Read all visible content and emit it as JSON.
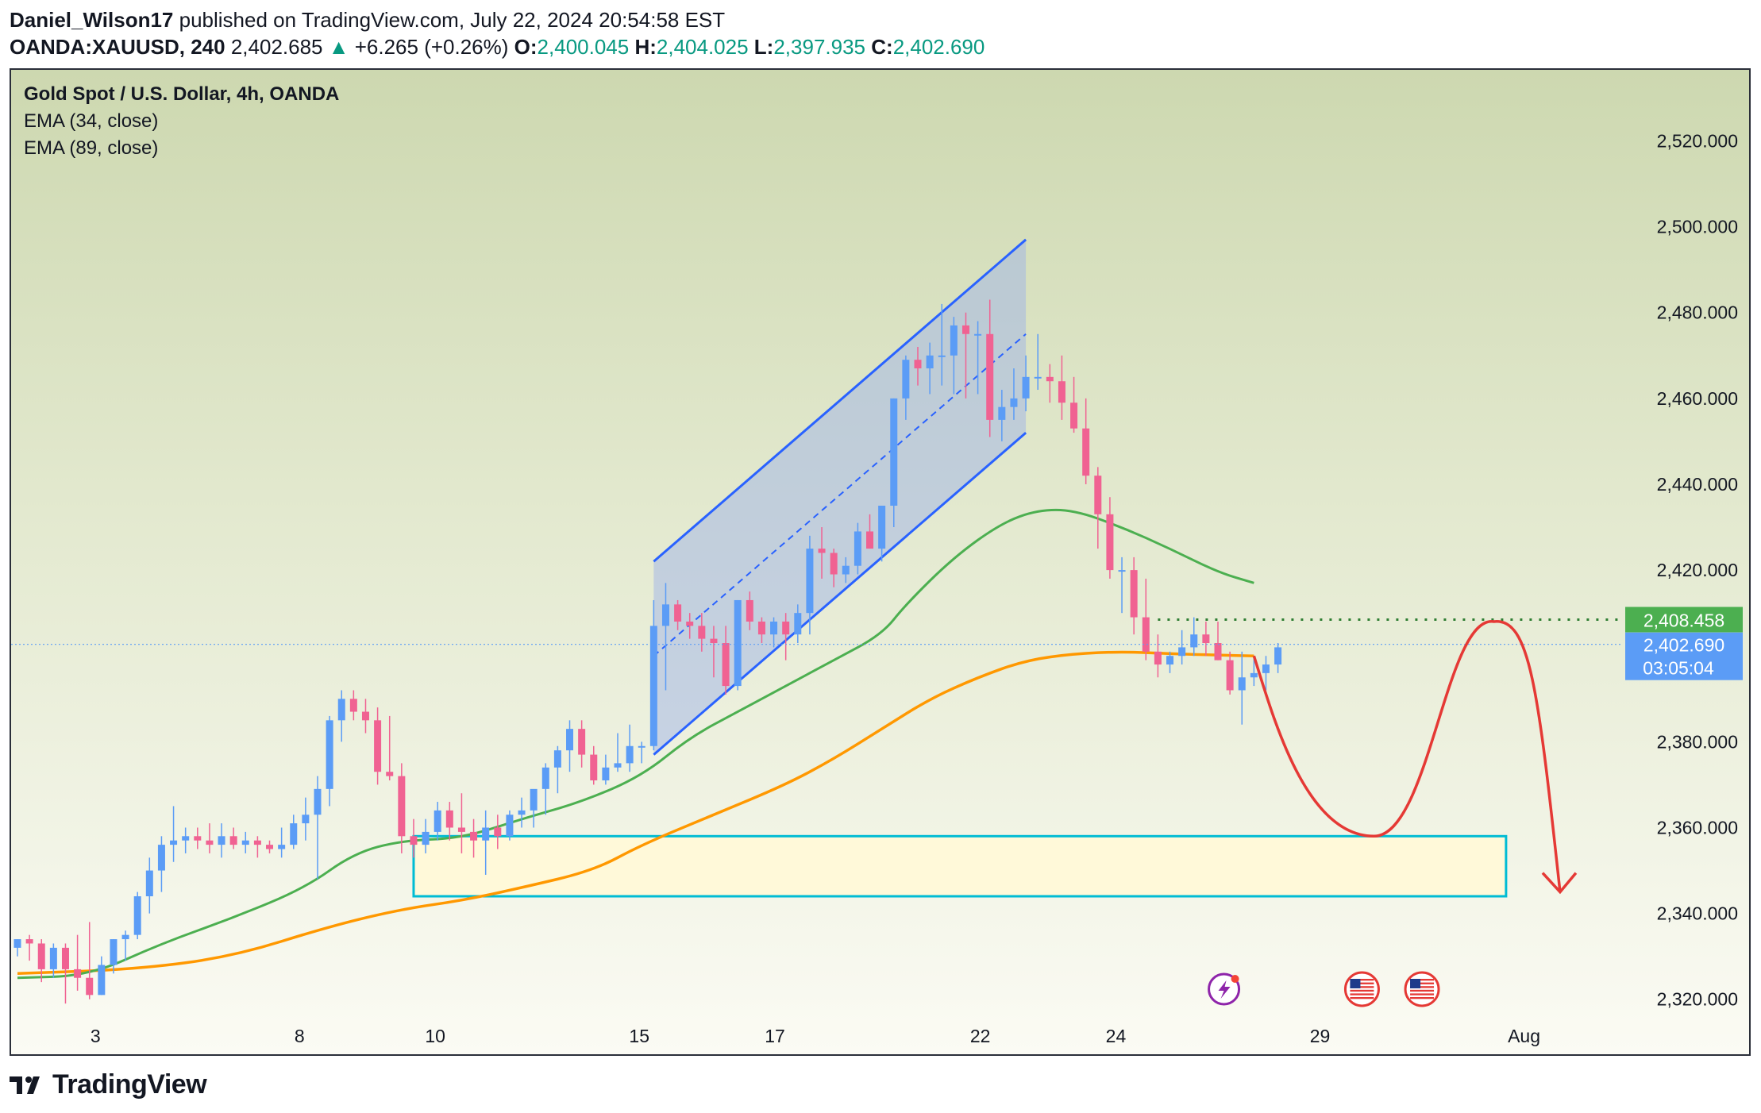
{
  "header": {
    "author": "Daniel_Wilson17",
    "published": "published on TradingView.com, July 22, 2024 20:54:58 EST",
    "symbol": "OANDA:XAUUSD, 240",
    "price": "2,402.685",
    "change": "+6.265 (+0.26%)",
    "open_label": "O:",
    "open": "2,400.045",
    "high_label": "H:",
    "high": "2,404.025",
    "low_label": "L:",
    "low": "2,397.935",
    "close_label": "C:",
    "close": "2,402.690"
  },
  "legend": {
    "title": "Gold Spot / U.S. Dollar, 4h, OANDA",
    "ema1": "EMA (34, close)",
    "ema2": "EMA (89, close)"
  },
  "footer": {
    "brand": "TradingView",
    "logo_icon": "tradingview-logo-icon"
  },
  "colors": {
    "up": "#5b9cf6",
    "down": "#f06292",
    "ema34": "#4caf50",
    "ema89": "#ff9800",
    "channel": "#2962ff",
    "zone_border": "#00bcd4",
    "zone_fill": "#fff9d9",
    "arrow": "#e53935",
    "level": "#2e7d32",
    "price_tag": "#5b9cf6",
    "level_tag": "#4caf50"
  },
  "chart_data": {
    "type": "candlestick",
    "title": "Gold Spot / U.S. Dollar, 4h, OANDA",
    "ylim": [
      2312,
      2531
    ],
    "y_ticks": [
      2520,
      2500,
      2480,
      2460,
      2440,
      2420,
      2380,
      2360,
      2340,
      2320
    ],
    "y_tick_labels": [
      "2,520.000",
      "2,500.000",
      "2,480.000",
      "2,460.000",
      "2,440.000",
      "2,420.000",
      "2,380.000",
      "2,360.000",
      "2,340.000",
      "2,320.000"
    ],
    "x_ticks": [
      {
        "label": "3",
        "bar": 6.5
      },
      {
        "label": "8",
        "bar": 23.5
      },
      {
        "label": "10",
        "bar": 34.8
      },
      {
        "label": "15",
        "bar": 51.8
      },
      {
        "label": "17",
        "bar": 63.1
      },
      {
        "label": "22",
        "bar": 80.2
      },
      {
        "label": "24",
        "bar": 91.5
      },
      {
        "label": "29",
        "bar": 108.5
      },
      {
        "label": "Aug",
        "bar": 125.5
      }
    ],
    "candles": [
      [
        2332,
        2334,
        2330,
        2334
      ],
      [
        2334,
        2335,
        2329,
        2333
      ],
      [
        2333,
        2334,
        2324,
        2327
      ],
      [
        2327,
        2333,
        2325,
        2332
      ],
      [
        2332,
        2333,
        2319,
        2327
      ],
      [
        2327,
        2335,
        2322,
        2325
      ],
      [
        2325,
        2338,
        2320,
        2321
      ],
      [
        2321,
        2330,
        2321,
        2328
      ],
      [
        2328,
        2334,
        2326,
        2334
      ],
      [
        2334,
        2336,
        2329,
        2335
      ],
      [
        2335,
        2345,
        2334,
        2344
      ],
      [
        2344,
        2353,
        2340,
        2350
      ],
      [
        2350,
        2358,
        2345,
        2356
      ],
      [
        2356,
        2365,
        2352,
        2357
      ],
      [
        2357,
        2360,
        2354,
        2358
      ],
      [
        2358,
        2360,
        2355,
        2357
      ],
      [
        2357,
        2361,
        2354,
        2356
      ],
      [
        2356,
        2361,
        2353,
        2358
      ],
      [
        2358,
        2360,
        2355,
        2356
      ],
      [
        2356,
        2359,
        2354,
        2357
      ],
      [
        2357,
        2358,
        2353,
        2356
      ],
      [
        2356,
        2357,
        2354,
        2355
      ],
      [
        2355,
        2360,
        2353,
        2356
      ],
      [
        2356,
        2363,
        2355,
        2361
      ],
      [
        2361,
        2367,
        2357,
        2363
      ],
      [
        2363,
        2372,
        2348,
        2369
      ],
      [
        2369,
        2386,
        2365,
        2385
      ],
      [
        2385,
        2392,
        2380,
        2390
      ],
      [
        2390,
        2392,
        2385,
        2387
      ],
      [
        2387,
        2390,
        2382,
        2385
      ],
      [
        2385,
        2388,
        2370,
        2373
      ],
      [
        2373,
        2386,
        2371,
        2372
      ],
      [
        2372,
        2375,
        2354,
        2358
      ],
      [
        2358,
        2362,
        2353,
        2356
      ],
      [
        2356,
        2362,
        2354,
        2359
      ],
      [
        2359,
        2366,
        2357,
        2364
      ],
      [
        2364,
        2366,
        2357,
        2360
      ],
      [
        2360,
        2368,
        2354,
        2359
      ],
      [
        2359,
        2362,
        2353,
        2357
      ],
      [
        2357,
        2364,
        2349,
        2360
      ],
      [
        2360,
        2363,
        2355,
        2358
      ],
      [
        2358,
        2364,
        2357,
        2363
      ],
      [
        2363,
        2367,
        2360,
        2364
      ],
      [
        2364,
        2368,
        2360,
        2369
      ],
      [
        2369,
        2375,
        2363,
        2374
      ],
      [
        2374,
        2379,
        2368,
        2378
      ],
      [
        2378,
        2385,
        2373,
        2383
      ],
      [
        2383,
        2385,
        2374,
        2377
      ],
      [
        2377,
        2379,
        2370,
        2371
      ],
      [
        2371,
        2377,
        2370,
        2374
      ],
      [
        2374,
        2382,
        2373,
        2375
      ],
      [
        2375,
        2384,
        2373,
        2379
      ],
      [
        2379,
        2380,
        2375,
        2379
      ],
      [
        2379,
        2413,
        2378,
        2407
      ],
      [
        2407,
        2417,
        2392,
        2412
      ],
      [
        2412,
        2413,
        2406,
        2408
      ],
      [
        2408,
        2410,
        2404,
        2407
      ],
      [
        2407,
        2410,
        2401,
        2404
      ],
      [
        2404,
        2407,
        2395,
        2403
      ],
      [
        2403,
        2407,
        2391,
        2393
      ],
      [
        2393,
        2413,
        2392,
        2413
      ],
      [
        2413,
        2415,
        2406,
        2408
      ],
      [
        2408,
        2409,
        2403,
        2405
      ],
      [
        2405,
        2409,
        2402,
        2408
      ],
      [
        2408,
        2410,
        2399,
        2405
      ],
      [
        2405,
        2412,
        2403,
        2410
      ],
      [
        2410,
        2428,
        2405,
        2425
      ],
      [
        2425,
        2430,
        2418,
        2424
      ],
      [
        2424,
        2425,
        2416,
        2419
      ],
      [
        2419,
        2423,
        2417,
        2421
      ],
      [
        2421,
        2431,
        2419,
        2429
      ],
      [
        2429,
        2433,
        2425,
        2425
      ],
      [
        2425,
        2435,
        2422,
        2435
      ],
      [
        2435,
        2460,
        2430,
        2460
      ],
      [
        2460,
        2470,
        2455,
        2469
      ],
      [
        2469,
        2472,
        2463,
        2467
      ],
      [
        2467,
        2473,
        2461,
        2470
      ],
      [
        2470,
        2482,
        2463,
        2470
      ],
      [
        2470,
        2479,
        2461,
        2477
      ],
      [
        2477,
        2480,
        2460,
        2475
      ],
      [
        2475,
        2478,
        2461,
        2475
      ],
      [
        2475,
        2483,
        2451,
        2455
      ],
      [
        2455,
        2462,
        2450,
        2458
      ],
      [
        2458,
        2467,
        2455,
        2460
      ],
      [
        2460,
        2470,
        2457,
        2465
      ],
      [
        2465,
        2475,
        2462,
        2465
      ],
      [
        2465,
        2468,
        2459,
        2464
      ],
      [
        2464,
        2470,
        2455,
        2459
      ],
      [
        2459,
        2465,
        2452,
        2453
      ],
      [
        2453,
        2460,
        2440,
        2442
      ],
      [
        2442,
        2444,
        2425,
        2433
      ],
      [
        2433,
        2437,
        2418,
        2420
      ],
      [
        2420,
        2423,
        2410,
        2420
      ],
      [
        2420,
        2423,
        2405,
        2409
      ],
      [
        2409,
        2418,
        2399,
        2401
      ],
      [
        2401,
        2405,
        2395,
        2398
      ],
      [
        2398,
        2401,
        2396,
        2400
      ],
      [
        2400,
        2406,
        2398,
        2402
      ],
      [
        2402,
        2409,
        2400,
        2405
      ],
      [
        2405,
        2408,
        2400,
        2403
      ],
      [
        2403,
        2408,
        2399,
        2399
      ],
      [
        2399,
        2401,
        2391,
        2392
      ],
      [
        2392,
        2401,
        2384,
        2395
      ],
      [
        2395,
        2400,
        2393,
        2396
      ],
      [
        2396,
        2400,
        2392,
        2398
      ],
      [
        2398,
        2403,
        2396,
        2402
      ]
    ],
    "ema34": [
      [
        0,
        2325
      ],
      [
        6,
        2325.5
      ],
      [
        12,
        2333
      ],
      [
        18,
        2339
      ],
      [
        24,
        2346
      ],
      [
        28,
        2354
      ],
      [
        32,
        2357
      ],
      [
        37,
        2357.5
      ],
      [
        42,
        2362
      ],
      [
        47,
        2366
      ],
      [
        52,
        2372
      ],
      [
        56,
        2381
      ],
      [
        60,
        2387
      ],
      [
        64,
        2393
      ],
      [
        68,
        2399
      ],
      [
        72,
        2405
      ],
      [
        74,
        2412
      ],
      [
        78,
        2423
      ],
      [
        82,
        2431
      ],
      [
        85,
        2434
      ],
      [
        88,
        2434
      ],
      [
        92,
        2430
      ],
      [
        96,
        2425
      ],
      [
        100,
        2419.5
      ],
      [
        103,
        2417
      ]
    ],
    "ema89": [
      [
        0,
        2326
      ],
      [
        10,
        2327
      ],
      [
        18,
        2330
      ],
      [
        26,
        2337
      ],
      [
        32,
        2341
      ],
      [
        37,
        2343
      ],
      [
        42,
        2346
      ],
      [
        48,
        2350
      ],
      [
        52,
        2356
      ],
      [
        58,
        2363
      ],
      [
        64,
        2370
      ],
      [
        68,
        2376
      ],
      [
        72,
        2383
      ],
      [
        76,
        2390
      ],
      [
        80,
        2395
      ],
      [
        84,
        2399
      ],
      [
        88,
        2400.5
      ],
      [
        92,
        2401
      ],
      [
        96,
        2400.5
      ],
      [
        100,
        2400.2
      ],
      [
        103,
        2400
      ]
    ],
    "channel": {
      "top": [
        [
          53,
          2422
        ],
        [
          84,
          2497
        ]
      ],
      "bottom": [
        [
          53,
          2377
        ],
        [
          84,
          2452
        ]
      ],
      "mid": [
        [
          53,
          2400
        ],
        [
          84,
          2475
        ]
      ]
    },
    "zone": {
      "bar_start": 33,
      "bar_end": 124,
      "top": 2358,
      "bottom": 2344
    },
    "resistance": {
      "value": 2408.458,
      "label": "2,408.458",
      "bar_start": 95
    },
    "last_price": {
      "value": 2402.69,
      "label": "2,402.690",
      "countdown": "03:05:04"
    },
    "projection": [
      [
        103,
        2400
      ],
      [
        108,
        2375
      ],
      [
        113,
        2358
      ],
      [
        117,
        2367
      ],
      [
        123,
        2408
      ],
      [
        126,
        2400
      ],
      [
        128.5,
        2345
      ]
    ],
    "event_icons": [
      {
        "bar": 100.5,
        "name": "lightning-event-icon"
      },
      {
        "bar": 112,
        "name": "us-flag-event-icon"
      },
      {
        "bar": 117,
        "name": "us-flag-event-icon"
      }
    ]
  }
}
